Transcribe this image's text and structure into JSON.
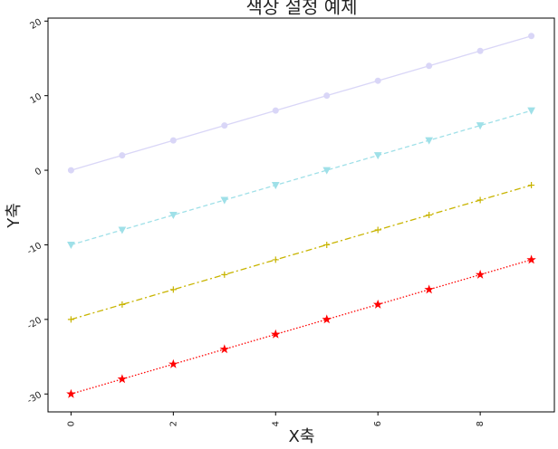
{
  "chart_data": {
    "type": "line",
    "title": "색상 설정 예제",
    "x_label": "X축",
    "y_label": "Y축",
    "x": [
      0,
      1,
      2,
      3,
      4,
      5,
      6,
      7,
      8,
      9
    ],
    "series": [
      {
        "color": "#d9d6f7",
        "marker": "circle",
        "linestyle": "solid",
        "values": [
          0,
          2,
          4,
          6,
          8,
          10,
          12,
          14,
          16,
          18
        ]
      },
      {
        "color": "#9fe0e8",
        "marker": "triangle-down",
        "linestyle": "dashed",
        "values": [
          -10,
          -8,
          -6,
          -4,
          -2,
          0,
          2,
          4,
          6,
          8
        ]
      },
      {
        "color": "#c8b400",
        "marker": "plus",
        "linestyle": "dashdot",
        "values": [
          -20,
          -18,
          -16,
          -14,
          -12,
          -10,
          -8,
          -6,
          -4,
          -2
        ]
      },
      {
        "color": "#ff0000",
        "marker": "star",
        "linestyle": "dotted",
        "values": [
          -30,
          -28,
          -26,
          -24,
          -22,
          -20,
          -18,
          -16,
          -14,
          -12
        ]
      }
    ],
    "xlim": [
      -0.45,
      9.45
    ],
    "ylim": [
      -32.4,
      20.4
    ],
    "xticks": [
      0,
      2,
      4,
      6,
      8
    ],
    "yticks": [
      -30,
      -20,
      -10,
      0,
      10,
      20
    ]
  }
}
